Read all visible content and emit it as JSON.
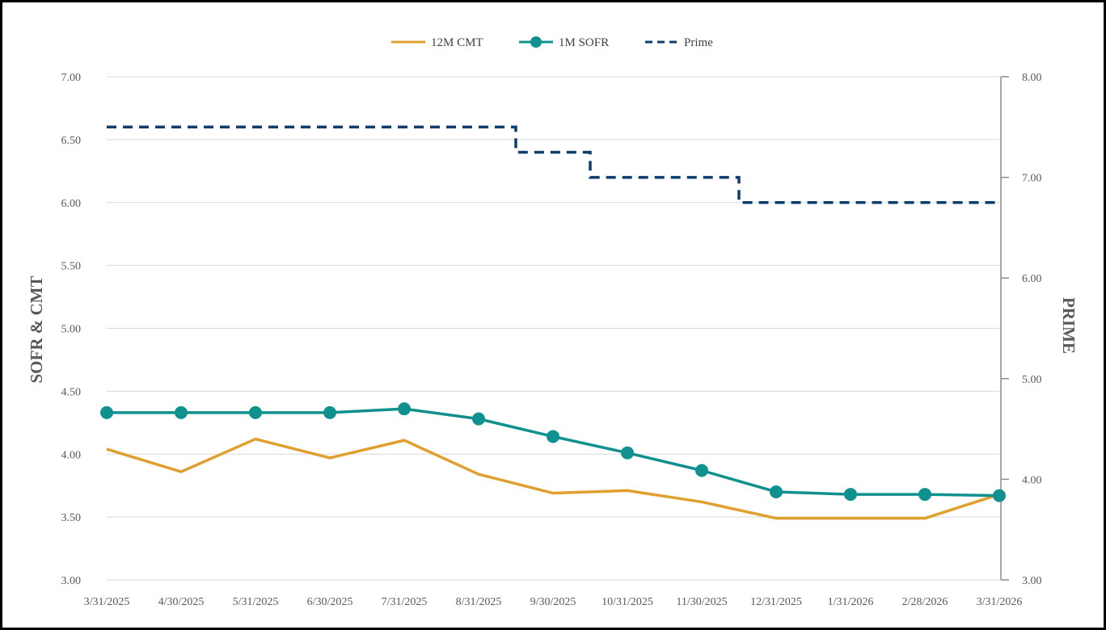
{
  "chart_data": {
    "type": "line",
    "title": "",
    "categories": [
      "3/31/2025",
      "4/30/2025",
      "5/31/2025",
      "6/30/2025",
      "7/31/2025",
      "8/31/2025",
      "9/30/2025",
      "10/31/2025",
      "11/30/2025",
      "12/31/2025",
      "1/31/2026",
      "2/28/2026",
      "3/31/2026"
    ],
    "ylabel_left": "SOFR & CMT",
    "ylabel_right": "PRIME",
    "ylim_left": [
      3.0,
      7.0
    ],
    "ylim_right": [
      3.0,
      8.0
    ],
    "yticks_left": [
      "3.00",
      "3.50",
      "4.00",
      "4.50",
      "5.00",
      "5.50",
      "6.00",
      "6.50",
      "7.00"
    ],
    "yticks_right": [
      "3.00",
      "4.00",
      "5.00",
      "6.00",
      "7.00",
      "8.00"
    ],
    "grid": true,
    "legend_position": "top",
    "series": [
      {
        "name": "12M CMT",
        "axis": "left",
        "style": "solid",
        "color": "#E0A030",
        "values": [
          4.04,
          3.86,
          4.12,
          3.97,
          4.11,
          3.84,
          3.69,
          3.71,
          3.62,
          3.49,
          3.49,
          3.49,
          3.68
        ]
      },
      {
        "name": "1M SOFR",
        "axis": "left",
        "style": "solid-markers",
        "color": "#10918F",
        "values": [
          4.33,
          4.33,
          4.33,
          4.33,
          4.36,
          4.28,
          4.14,
          4.01,
          3.87,
          3.7,
          3.68,
          3.68,
          3.67
        ]
      },
      {
        "name": "Prime",
        "axis": "right",
        "style": "dashed-step",
        "color": "#0E3E6E",
        "values": [
          7.5,
          7.5,
          7.5,
          7.5,
          7.5,
          7.5,
          7.25,
          7.0,
          7.0,
          6.75,
          6.75,
          6.75,
          6.75
        ]
      }
    ]
  }
}
